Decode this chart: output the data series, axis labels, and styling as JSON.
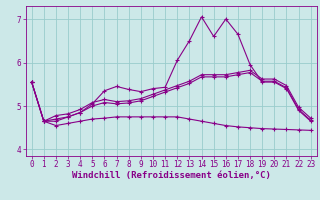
{
  "xlabel": "Windchill (Refroidissement éolien,°C)",
  "bg_color": "#cce8e8",
  "line_color": "#880088",
  "grid_color": "#99cccc",
  "xlim": [
    -0.5,
    23.5
  ],
  "ylim": [
    3.85,
    7.3
  ],
  "yticks": [
    4,
    5,
    6,
    7
  ],
  "xticks": [
    0,
    1,
    2,
    3,
    4,
    5,
    6,
    7,
    8,
    9,
    10,
    11,
    12,
    13,
    14,
    15,
    16,
    17,
    18,
    19,
    20,
    21,
    22,
    23
  ],
  "series": [
    [
      5.55,
      4.65,
      4.65,
      4.75,
      4.85,
      5.05,
      5.35,
      5.45,
      5.38,
      5.33,
      5.4,
      5.43,
      6.05,
      6.5,
      7.05,
      6.6,
      7.0,
      6.65,
      5.95,
      5.55,
      5.55,
      5.4,
      4.9,
      4.65
    ],
    [
      5.55,
      4.65,
      4.78,
      4.82,
      4.92,
      5.08,
      5.15,
      5.1,
      5.12,
      5.17,
      5.27,
      5.37,
      5.47,
      5.57,
      5.72,
      5.72,
      5.72,
      5.77,
      5.82,
      5.62,
      5.62,
      5.47,
      4.97,
      4.72
    ],
    [
      5.55,
      4.65,
      4.7,
      4.75,
      4.85,
      5.0,
      5.08,
      5.05,
      5.07,
      5.12,
      5.22,
      5.32,
      5.42,
      5.52,
      5.67,
      5.67,
      5.67,
      5.72,
      5.77,
      5.57,
      5.57,
      5.42,
      4.92,
      4.67
    ],
    [
      5.55,
      4.65,
      4.55,
      4.6,
      4.65,
      4.7,
      4.72,
      4.75,
      4.75,
      4.75,
      4.75,
      4.75,
      4.75,
      4.7,
      4.65,
      4.6,
      4.55,
      4.52,
      4.5,
      4.48,
      4.47,
      4.46,
      4.45,
      4.44
    ]
  ],
  "marker": "+",
  "markersize": 3,
  "linewidth": 0.8,
  "tick_fontsize": 5.5,
  "label_fontsize": 6.5
}
